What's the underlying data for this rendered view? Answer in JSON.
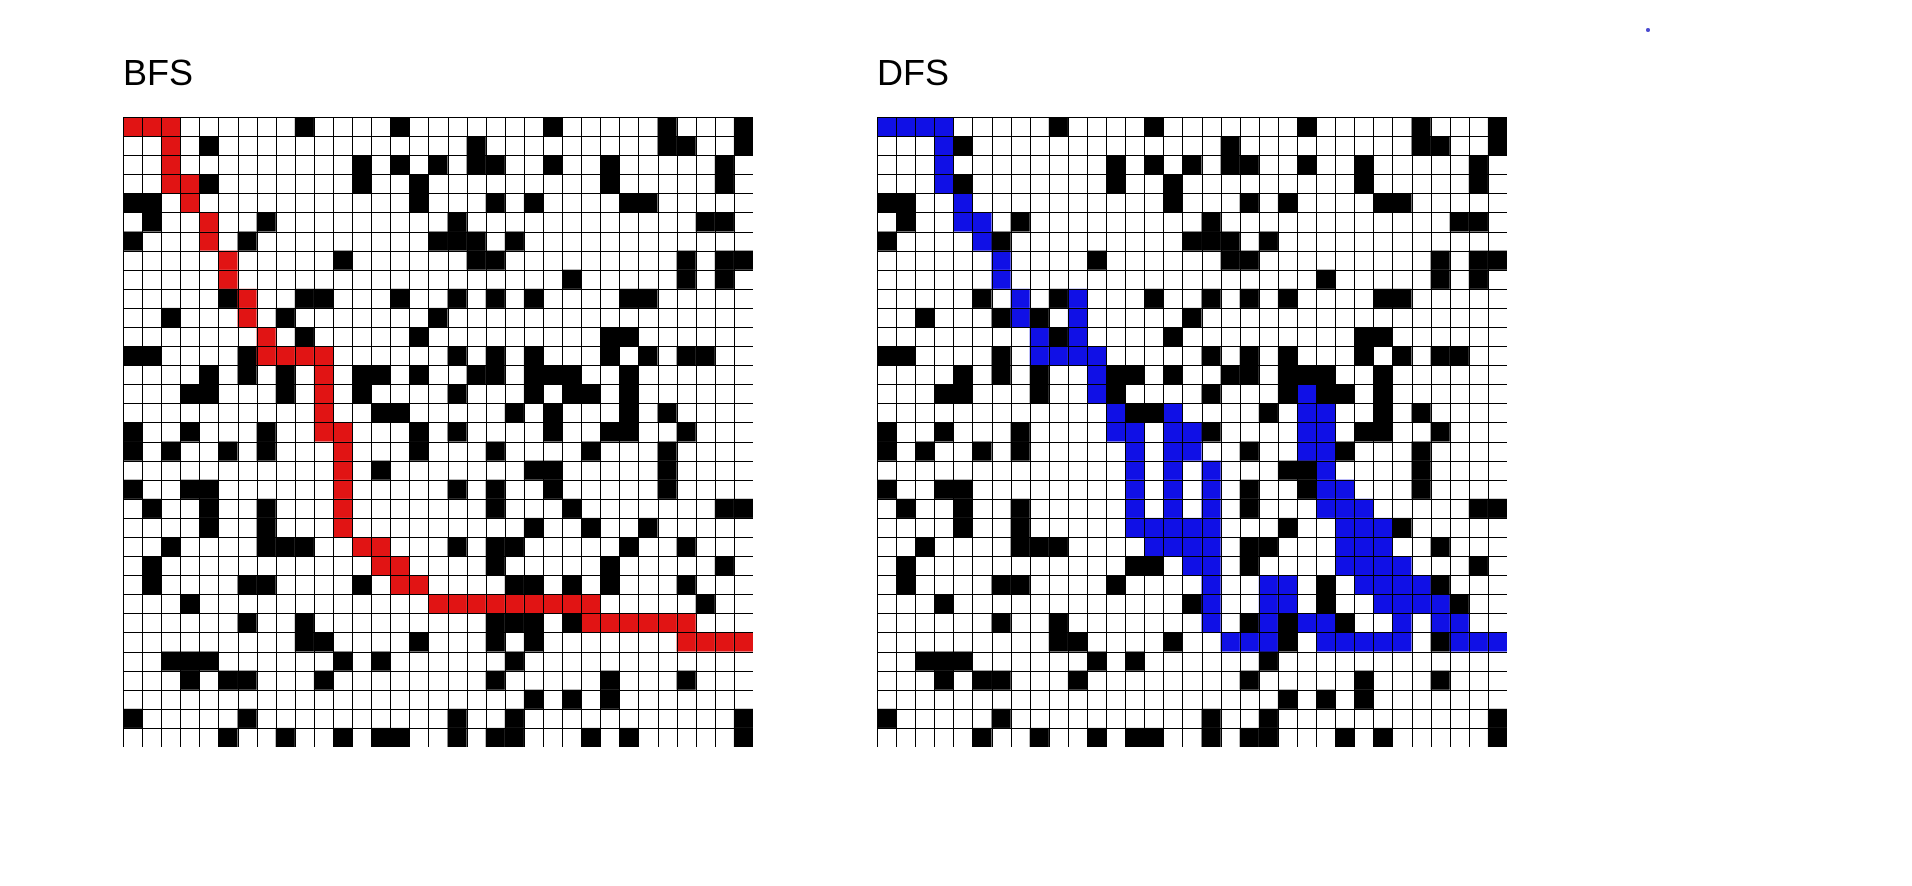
{
  "panels": [
    {
      "id": "bfs",
      "title": "BFS",
      "path_color": "#e11414",
      "path": [
        [
          0,
          0
        ],
        [
          1,
          0
        ],
        [
          2,
          0
        ],
        [
          2,
          1
        ],
        [
          2,
          2
        ],
        [
          2,
          3
        ],
        [
          3,
          3
        ],
        [
          3,
          4
        ],
        [
          4,
          5
        ],
        [
          4,
          6
        ],
        [
          5,
          7
        ],
        [
          5,
          8
        ],
        [
          6,
          9
        ],
        [
          6,
          10
        ],
        [
          7,
          11
        ],
        [
          7,
          12
        ],
        [
          8,
          12
        ],
        [
          9,
          12
        ],
        [
          10,
          12
        ],
        [
          10,
          13
        ],
        [
          10,
          14
        ],
        [
          10,
          15
        ],
        [
          10,
          16
        ],
        [
          11,
          16
        ],
        [
          11,
          17
        ],
        [
          11,
          18
        ],
        [
          11,
          19
        ],
        [
          11,
          20
        ],
        [
          11,
          21
        ],
        [
          12,
          22
        ],
        [
          13,
          22
        ],
        [
          13,
          23
        ],
        [
          14,
          23
        ],
        [
          14,
          24
        ],
        [
          15,
          24
        ],
        [
          16,
          25
        ],
        [
          17,
          25
        ],
        [
          18,
          25
        ],
        [
          19,
          25
        ],
        [
          20,
          25
        ],
        [
          21,
          25
        ],
        [
          22,
          25
        ],
        [
          23,
          25
        ],
        [
          24,
          25
        ],
        [
          24,
          26
        ],
        [
          25,
          26
        ],
        [
          26,
          26
        ],
        [
          27,
          26
        ],
        [
          28,
          26
        ],
        [
          29,
          26
        ],
        [
          29,
          27
        ],
        [
          30,
          27
        ],
        [
          31,
          27
        ],
        [
          32,
          27
        ]
      ]
    },
    {
      "id": "dfs",
      "title": "DFS",
      "path_color": "#1010e6",
      "path": [
        [
          0,
          0
        ],
        [
          1,
          0
        ],
        [
          2,
          0
        ],
        [
          3,
          0
        ],
        [
          3,
          1
        ],
        [
          3,
          2
        ],
        [
          3,
          3
        ],
        [
          4,
          4
        ],
        [
          4,
          5
        ],
        [
          5,
          5
        ],
        [
          5,
          6
        ],
        [
          6,
          7
        ],
        [
          6,
          8
        ],
        [
          7,
          9
        ],
        [
          7,
          10
        ],
        [
          8,
          11
        ],
        [
          8,
          12
        ],
        [
          9,
          12
        ],
        [
          10,
          12
        ],
        [
          10,
          11
        ],
        [
          10,
          10
        ],
        [
          10,
          9
        ],
        [
          11,
          12
        ],
        [
          11,
          13
        ],
        [
          11,
          14
        ],
        [
          12,
          15
        ],
        [
          12,
          16
        ],
        [
          13,
          16
        ],
        [
          13,
          17
        ],
        [
          13,
          18
        ],
        [
          13,
          19
        ],
        [
          13,
          20
        ],
        [
          13,
          21
        ],
        [
          14,
          21
        ],
        [
          15,
          21
        ],
        [
          16,
          21
        ],
        [
          16,
          22
        ],
        [
          16,
          23
        ],
        [
          15,
          22
        ],
        [
          14,
          22
        ],
        [
          15,
          20
        ],
        [
          15,
          19
        ],
        [
          15,
          18
        ],
        [
          15,
          17
        ],
        [
          15,
          16
        ],
        [
          15,
          15
        ],
        [
          16,
          16
        ],
        [
          16,
          17
        ],
        [
          17,
          18
        ],
        [
          17,
          19
        ],
        [
          17,
          20
        ],
        [
          17,
          21
        ],
        [
          17,
          22
        ],
        [
          17,
          23
        ],
        [
          17,
          24
        ],
        [
          17,
          25
        ],
        [
          17,
          26
        ],
        [
          18,
          27
        ],
        [
          19,
          27
        ],
        [
          20,
          27
        ],
        [
          20,
          26
        ],
        [
          20,
          25
        ],
        [
          20,
          24
        ],
        [
          21,
          24
        ],
        [
          21,
          25
        ],
        [
          22,
          26
        ],
        [
          23,
          26
        ],
        [
          23,
          27
        ],
        [
          24,
          27
        ],
        [
          25,
          27
        ],
        [
          26,
          27
        ],
        [
          27,
          27
        ],
        [
          27,
          26
        ],
        [
          27,
          25
        ],
        [
          26,
          25
        ],
        [
          26,
          24
        ],
        [
          25,
          24
        ],
        [
          25,
          23
        ],
        [
          24,
          23
        ],
        [
          24,
          22
        ],
        [
          24,
          21
        ],
        [
          24,
          20
        ],
        [
          23,
          20
        ],
        [
          23,
          19
        ],
        [
          23,
          18
        ],
        [
          23,
          17
        ],
        [
          22,
          17
        ],
        [
          22,
          16
        ],
        [
          22,
          15
        ],
        [
          22,
          14
        ],
        [
          23,
          15
        ],
        [
          23,
          16
        ],
        [
          24,
          19
        ],
        [
          25,
          20
        ],
        [
          25,
          21
        ],
        [
          25,
          22
        ],
        [
          26,
          23
        ],
        [
          26,
          22
        ],
        [
          26,
          21
        ],
        [
          27,
          23
        ],
        [
          27,
          24
        ],
        [
          28,
          24
        ],
        [
          28,
          25
        ],
        [
          29,
          25
        ],
        [
          29,
          26
        ],
        [
          30,
          26
        ],
        [
          30,
          27
        ],
        [
          31,
          27
        ],
        [
          32,
          27
        ]
      ]
    }
  ]
}
